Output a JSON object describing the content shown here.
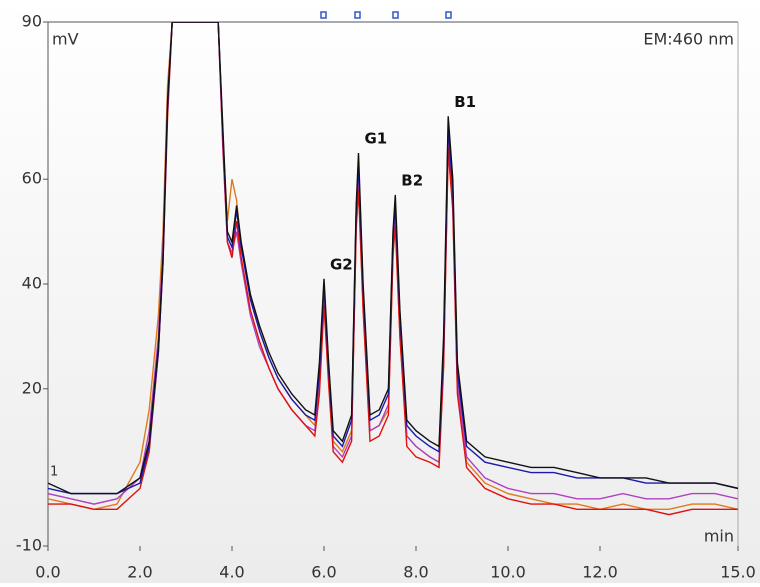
{
  "chart_data": {
    "type": "line",
    "y_label": "mV",
    "x_label": "min",
    "detector": "EM:460 nm",
    "channel_label": "1",
    "xlim": [
      0,
      15
    ],
    "ylim": [
      -10,
      90
    ],
    "xticks": [
      {
        "value": 0,
        "label": "0.0"
      },
      {
        "value": 2,
        "label": "2.0"
      },
      {
        "value": 4,
        "label": "4.0"
      },
      {
        "value": 6,
        "label": "6.0"
      },
      {
        "value": 8,
        "label": "8.0"
      },
      {
        "value": 10,
        "label": "10.0"
      },
      {
        "value": 12,
        "label": "12.0"
      },
      {
        "value": 15,
        "label": "15.0"
      }
    ],
    "yticks": [
      -10,
      20,
      40,
      60,
      90
    ],
    "annotations": [
      {
        "text": "G2",
        "x": 6.0,
        "y": 41
      },
      {
        "text": "G1",
        "x": 6.75,
        "y": 65
      },
      {
        "text": "B2",
        "x": 7.55,
        "y": 57
      },
      {
        "text": "B1",
        "x": 8.7,
        "y": 72
      }
    ],
    "x": [
      0,
      0.5,
      1.0,
      1.5,
      2.0,
      2.2,
      2.4,
      2.5,
      2.6,
      2.7,
      2.8,
      3.0,
      3.3,
      3.6,
      3.7,
      3.8,
      3.9,
      4.0,
      4.1,
      4.2,
      4.4,
      4.6,
      4.8,
      5.0,
      5.3,
      5.6,
      5.8,
      5.9,
      6.0,
      6.1,
      6.2,
      6.4,
      6.6,
      6.7,
      6.75,
      6.85,
      7.0,
      7.2,
      7.4,
      7.5,
      7.55,
      7.65,
      7.8,
      8.0,
      8.3,
      8.5,
      8.6,
      8.7,
      8.8,
      8.9,
      9.1,
      9.5,
      10,
      10.5,
      11,
      11.5,
      12,
      12.5,
      13,
      13.5,
      14,
      14.5,
      15
    ],
    "series": [
      {
        "name": "orange",
        "color": "#e07a1a",
        "values": [
          -1,
          -2,
          -3,
          -2,
          6,
          16,
          34,
          50,
          78,
          90,
          90,
          90,
          90,
          90,
          90,
          68,
          52,
          60,
          56,
          47,
          38,
          31,
          26,
          22,
          18,
          15,
          13,
          22,
          38,
          23,
          10,
          8,
          12,
          50,
          59,
          36,
          12,
          13,
          16,
          45,
          52,
          30,
          11,
          9,
          7,
          6,
          25,
          65,
          55,
          20,
          6,
          2,
          0,
          -1,
          -2,
          -2,
          -3,
          -2,
          -3,
          -3,
          -2,
          -2,
          -3
        ]
      },
      {
        "name": "purple",
        "color": "#b040c0",
        "values": [
          0,
          -1,
          -2,
          -1,
          3,
          12,
          30,
          47,
          75,
          90,
          90,
          90,
          90,
          90,
          90,
          66,
          48,
          46,
          50,
          44,
          34,
          28,
          24,
          20,
          16,
          13,
          12,
          20,
          37,
          22,
          9,
          7,
          11,
          52,
          60,
          37,
          12,
          13,
          17,
          47,
          53,
          32,
          11,
          9,
          7,
          6,
          26,
          67,
          56,
          21,
          7,
          3,
          1,
          0,
          0,
          -1,
          -1,
          0,
          -1,
          -1,
          0,
          0,
          -1
        ]
      },
      {
        "name": "red",
        "color": "#e01010",
        "values": [
          -2,
          -2,
          -3,
          -3,
          1,
          8,
          27,
          44,
          72,
          90,
          90,
          90,
          90,
          90,
          90,
          67,
          48,
          45,
          52,
          45,
          35,
          29,
          24,
          20,
          16,
          13,
          11,
          19,
          36,
          21,
          8,
          6,
          10,
          51,
          58,
          35,
          10,
          11,
          15,
          46,
          51,
          30,
          9,
          7,
          6,
          5,
          24,
          66,
          54,
          19,
          5,
          1,
          -1,
          -2,
          -2,
          -3,
          -3,
          -3,
          -3,
          -4,
          -3,
          -3,
          -3
        ]
      },
      {
        "name": "blue",
        "color": "#1a1ab0",
        "values": [
          1,
          0,
          0,
          0,
          2,
          9,
          27,
          44,
          74,
          90,
          90,
          90,
          90,
          90,
          90,
          69,
          49,
          47,
          54,
          47,
          37,
          31,
          26,
          22,
          18,
          15,
          14,
          23,
          40,
          24,
          11,
          9,
          14,
          54,
          63,
          39,
          14,
          15,
          19,
          49,
          55,
          34,
          13,
          11,
          9,
          8,
          28,
          70,
          58,
          23,
          9,
          6,
          5,
          4,
          4,
          3,
          3,
          3,
          2,
          2,
          2,
          2,
          1
        ]
      },
      {
        "name": "black",
        "color": "#111111",
        "values": [
          2,
          0,
          0,
          0,
          3,
          10,
          28,
          45,
          75,
          90,
          90,
          90,
          90,
          90,
          90,
          70,
          50,
          48,
          55,
          48,
          38,
          32,
          27,
          23,
          19,
          16,
          15,
          25,
          41,
          25,
          12,
          10,
          15,
          55,
          65,
          40,
          15,
          16,
          20,
          50,
          57,
          35,
          14,
          12,
          10,
          9,
          30,
          72,
          60,
          25,
          10,
          7,
          6,
          5,
          5,
          4,
          3,
          3,
          3,
          2,
          2,
          2,
          1
        ]
      }
    ]
  }
}
